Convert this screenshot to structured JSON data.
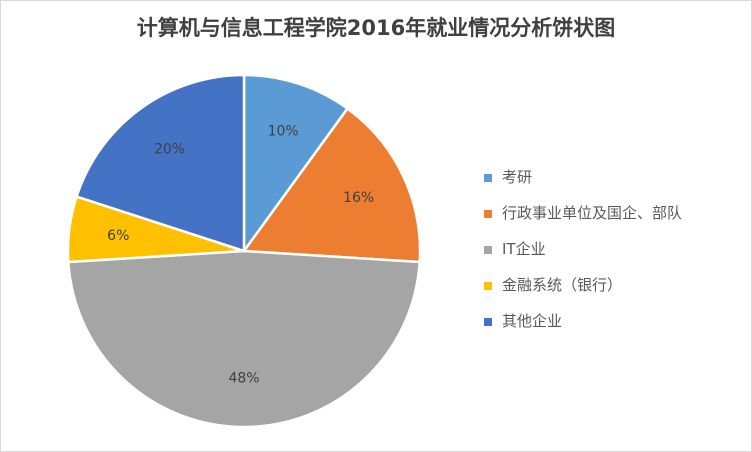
{
  "chart_data": {
    "type": "pie",
    "title": "计算机与信息工程学院2016年就业情况分析饼状图",
    "categories": [
      "考研",
      "行政事业单位及国企、部队",
      "IT企业",
      "金融系统（银行）",
      "其他企业"
    ],
    "values": [
      10,
      16,
      48,
      6,
      20
    ],
    "data_labels": [
      "10%",
      "16%",
      "48%",
      "6%",
      "20%"
    ],
    "colors": [
      "#5b9bd5",
      "#ed7d31",
      "#a5a5a5",
      "#ffc000",
      "#4472c4"
    ],
    "legend_position": "right"
  }
}
